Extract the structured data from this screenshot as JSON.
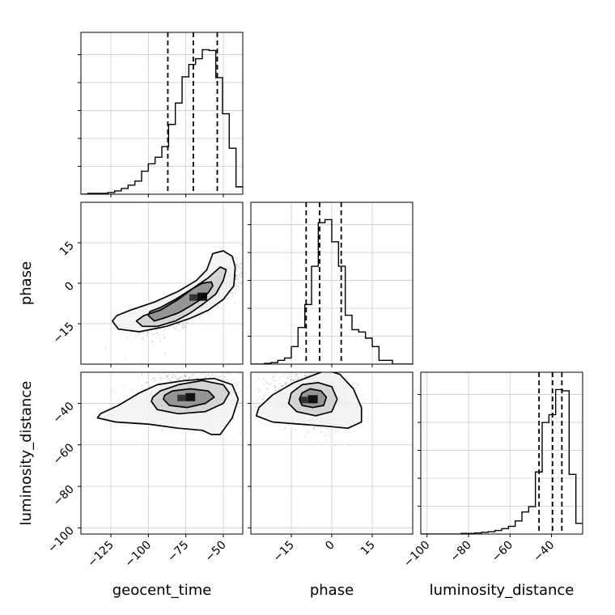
{
  "chart_data": {
    "type": "corner",
    "grid": true,
    "parameters": [
      "geocent_time",
      "phase",
      "luminosity_distance"
    ],
    "axes": {
      "geocent_time": {
        "label": "geocent_time",
        "range": [
          -145,
          -37
        ],
        "ticks": [
          -125,
          -100,
          -75,
          -50
        ],
        "tick_labels": [
          "−125",
          "−100",
          "−75",
          "−50"
        ]
      },
      "phase": {
        "label": "phase",
        "range": [
          -30,
          30
        ],
        "ticks": [
          -15,
          0,
          15
        ],
        "tick_labels": [
          "−15",
          "0",
          "15"
        ]
      },
      "luminosity_distance": {
        "label": "luminosity_distance",
        "range": [
          -103,
          -25
        ],
        "ticks": [
          -100,
          -80,
          -60,
          -40
        ],
        "tick_labels": [
          "−100",
          "−80",
          "−60",
          "−40"
        ]
      }
    },
    "histograms": [
      {
        "parameter": "geocent_time",
        "bin_edges": [
          -145,
          -140.5,
          -136,
          -131.5,
          -127,
          -122.5,
          -118,
          -113.5,
          -109,
          -104.5,
          -100,
          -95.5,
          -91,
          -86.5,
          -82,
          -77.5,
          -73,
          -68.5,
          -64,
          -59.5,
          -55,
          -50.5,
          -46,
          -41.5,
          -37
        ],
        "counts": [
          0,
          1,
          1,
          1,
          2,
          4,
          7,
          11,
          16,
          28,
          37,
          45,
          58,
          85,
          111,
          143,
          158,
          165,
          176,
          175,
          142,
          98,
          56,
          9
        ],
        "quantiles": [
          -87,
          -70,
          -54
        ]
      },
      {
        "parameter": "phase",
        "bin_edges": [
          -30,
          -27.5,
          -25,
          -22.5,
          -20,
          -17.5,
          -15,
          -12.5,
          -10,
          -7.5,
          -5,
          -2.5,
          0,
          2.5,
          5,
          7.5,
          10,
          12.5,
          15,
          17.5,
          20,
          22.5,
          25,
          27.5,
          30
        ],
        "counts": [
          0,
          0,
          1,
          2,
          5,
          8,
          23,
          48,
          78,
          128,
          185,
          189,
          160,
          128,
          64,
          45,
          42,
          34,
          23,
          5,
          5,
          0,
          0,
          0
        ],
        "quantiles": [
          -9.5,
          -4.5,
          3.5
        ]
      },
      {
        "parameter": "luminosity_distance",
        "bin_edges": [
          -103,
          -99.75,
          -96.5,
          -93.25,
          -90,
          -86.75,
          -83.5,
          -80.25,
          -77,
          -73.75,
          -70.5,
          -67.25,
          -64,
          -60.75,
          -57.5,
          -54.25,
          -51,
          -47.75,
          -44.5,
          -41.25,
          -38,
          -34.75,
          -31.5,
          -28.25,
          -25
        ],
        "counts": [
          0,
          0,
          0,
          0,
          0,
          0,
          1,
          1,
          2,
          3,
          4,
          6,
          9,
          13,
          22,
          37,
          46,
          104,
          187,
          200,
          242,
          240,
          100,
          18
        ],
        "quantiles": [
          -46,
          -39.5,
          -35
        ]
      }
    ],
    "pairs": [
      {
        "x": "geocent_time",
        "y": "phase",
        "center": [
          -64,
          -5
        ],
        "spread": [
          16,
          6
        ],
        "correlation": 0.85,
        "contours": [
          [
            [
              -100,
              -12
            ],
            [
              -96,
              -14
            ],
            [
              -90,
              -13
            ],
            [
              -80,
              -11
            ],
            [
              -72,
              -8.5
            ],
            [
              -65,
              -6
            ],
            [
              -60,
              -3.5
            ],
            [
              -57,
              -1
            ],
            [
              -58,
              0.5
            ],
            [
              -64,
              0
            ],
            [
              -72,
              -2.5
            ],
            [
              -82,
              -6
            ],
            [
              -92,
              -9
            ],
            [
              -99,
              -10.5
            ]
          ],
          [
            [
              -108,
              -14
            ],
            [
              -104,
              -16
            ],
            [
              -94,
              -16
            ],
            [
              -82,
              -14
            ],
            [
              -72,
              -11
            ],
            [
              -63,
              -7.5
            ],
            [
              -55,
              -4
            ],
            [
              -50,
              1
            ],
            [
              -48,
              5
            ],
            [
              -52,
              6
            ],
            [
              -60,
              2
            ],
            [
              -68,
              -1
            ],
            [
              -80,
              -6
            ],
            [
              -92,
              -10
            ],
            [
              -103,
              -12
            ]
          ],
          [
            [
              -124,
              -14
            ],
            [
              -120,
              -17
            ],
            [
              -106,
              -18
            ],
            [
              -88,
              -16
            ],
            [
              -72,
              -13
            ],
            [
              -60,
              -10
            ],
            [
              -50,
              -6
            ],
            [
              -43,
              -1
            ],
            [
              -42,
              6
            ],
            [
              -44,
              10
            ],
            [
              -50,
              12
            ],
            [
              -57,
              11
            ],
            [
              -61,
              5
            ],
            [
              -68,
              1
            ],
            [
              -80,
              -3
            ],
            [
              -96,
              -7
            ],
            [
              -112,
              -10
            ],
            [
              -121,
              -12
            ]
          ]
        ]
      },
      {
        "x": "geocent_time",
        "y": "luminosity_distance",
        "center": [
          -72,
          -37
        ],
        "spread": [
          16,
          6
        ],
        "correlation": 0.0,
        "contours": [
          [
            [
              -90,
              -38
            ],
            [
              -86,
              -41
            ],
            [
              -74,
              -42
            ],
            [
              -62,
              -40
            ],
            [
              -56,
              -37
            ],
            [
              -60,
              -34
            ],
            [
              -72,
              -33
            ],
            [
              -84,
              -34
            ],
            [
              -89,
              -36
            ]
          ],
          [
            [
              -98,
              -39
            ],
            [
              -94,
              -43
            ],
            [
              -80,
              -45
            ],
            [
              -62,
              -44
            ],
            [
              -50,
              -40
            ],
            [
              -46,
              -35
            ],
            [
              -50,
              -31
            ],
            [
              -64,
              -29
            ],
            [
              -80,
              -31
            ],
            [
              -92,
              -34
            ],
            [
              -97,
              -37
            ]
          ],
          [
            [
              -134,
              -47
            ],
            [
              -122,
              -49
            ],
            [
              -100,
              -50
            ],
            [
              -80,
              -52
            ],
            [
              -64,
              -53
            ],
            [
              -58,
              -55
            ],
            [
              -52,
              -55
            ],
            [
              -44,
              -47
            ],
            [
              -40,
              -38
            ],
            [
              -44,
              -31
            ],
            [
              -56,
              -28
            ],
            [
              -76,
              -29
            ],
            [
              -94,
              -31
            ],
            [
              -106,
              -35
            ],
            [
              -120,
              -41
            ],
            [
              -132,
              -45
            ]
          ]
        ]
      },
      {
        "x": "phase",
        "y": "luminosity_distance",
        "center": [
          -7,
          -38
        ],
        "spread": [
          8,
          6
        ],
        "correlation": -0.2,
        "contours": [
          [
            [
              -12,
              -38
            ],
            [
              -11,
              -41
            ],
            [
              -7,
              -42
            ],
            [
              -3,
              -41
            ],
            [
              -2,
              -37
            ],
            [
              -4,
              -34
            ],
            [
              -8,
              -33
            ],
            [
              -11,
              -35
            ]
          ],
          [
            [
              -16,
              -40
            ],
            [
              -13,
              -44
            ],
            [
              -6,
              -46
            ],
            [
              0,
              -44
            ],
            [
              2,
              -38
            ],
            [
              0,
              -32
            ],
            [
              -5,
              -30
            ],
            [
              -11,
              -31
            ],
            [
              -15,
              -35
            ]
          ],
          [
            [
              -28,
              -46
            ],
            [
              -22,
              -49
            ],
            [
              -12,
              -50
            ],
            [
              -2,
              -51
            ],
            [
              6,
              -52
            ],
            [
              11,
              -49
            ],
            [
              11,
              -42
            ],
            [
              8,
              -33
            ],
            [
              3,
              -26
            ],
            [
              -2,
              -24
            ],
            [
              -6,
              -26
            ],
            [
              -14,
              -30
            ],
            [
              -22,
              -36
            ],
            [
              -27,
              -42
            ]
          ]
        ]
      }
    ]
  }
}
